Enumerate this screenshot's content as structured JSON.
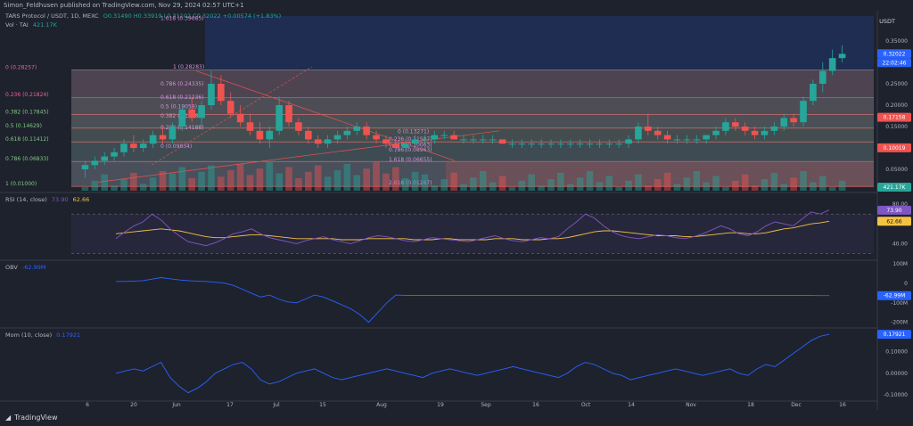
{
  "header": {
    "published": "Simon_Feldhusen published on TradingView.com, Nov 29, 2024 02:57 UTC+1"
  },
  "price_legend": {
    "symbol": "TARS Protocol / USDT, 1D, MEXC",
    "ohlc": "O0.31490 H0.33919 L0.31102 C0.32022 +0.00574 (+1.83%)",
    "vol_label": "Vol · TAI",
    "vol_value": "421.17K"
  },
  "rsi_legend": {
    "label": "RSI (14, close)",
    "v1": "73.90",
    "v2": "62.66"
  },
  "obv_legend": {
    "label": "OBV",
    "v1": "-62.99M"
  },
  "mom_legend": {
    "label": "Mom (10, close)",
    "v1": "0.17921"
  },
  "currency": "USDT",
  "current_price": "0.32022",
  "countdown": "22:02:46",
  "footer": {
    "brand": "TradingView"
  },
  "colors": {
    "up": "#26a69a",
    "down": "#ef5350",
    "rsi": "#7e57c2",
    "rsi_ma": "#f5c242",
    "obv": "#2962ff",
    "mom": "#2962ff",
    "bg": "#1e222d"
  },
  "chart_data": {
    "type": "candlestick",
    "price_axis_ticks": [
      "0.35000",
      "0.30000",
      "0.25000",
      "0.20000",
      "0.15000",
      "0.10000",
      "0.05000"
    ],
    "price_axis_markers": [
      "0.32022",
      "22:02:46",
      "0.17158",
      "0.10019",
      "421.17K"
    ],
    "rsi_axis_ticks": [
      "80.00",
      "73.90",
      "62.66",
      "40.00"
    ],
    "obv_axis_ticks": [
      "100M",
      "0",
      "-62.99M",
      "-100M",
      "-200M"
    ],
    "mom_axis_ticks": [
      "0.17921",
      "0.10000",
      "0.00000",
      "-0.10000"
    ],
    "x_ticks": [
      "6",
      "20",
      "Jun",
      "17",
      "Jul",
      "15",
      "Aug",
      "19",
      "Sep",
      "16",
      "Oct",
      "14",
      "Nov",
      "18",
      "Dec",
      "16"
    ],
    "fib_left": [
      {
        "level": "0",
        "price": "0.28257"
      },
      {
        "level": "0.236",
        "price": "0.21824"
      },
      {
        "level": "0.382",
        "price": "0.17845"
      },
      {
        "level": "0.5",
        "price": "0.14629"
      },
      {
        "level": "0.618",
        "price": "0.11412"
      },
      {
        "level": "0.786",
        "price": "0.06833"
      },
      {
        "level": "1",
        "price": "0.01000"
      }
    ],
    "fib_mid": [
      {
        "level": "1.618",
        "price": "0.39685"
      },
      {
        "level": "1",
        "price": "0.28283"
      },
      {
        "level": "0.786",
        "price": "0.24335"
      },
      {
        "level": "0.618",
        "price": "0.21236"
      },
      {
        "level": "0.5",
        "price": "0.19059"
      },
      {
        "level": "0.382",
        "price": "0.16881"
      },
      {
        "level": "0.236",
        "price": "0.14188"
      },
      {
        "level": "0",
        "price": "0.09834"
      }
    ],
    "fib_right": [
      {
        "level": "0",
        "price": "0.13271"
      },
      {
        "level": "0.236",
        "price": "0.11507"
      },
      {
        "level": "0.618",
        "price": "0.10063"
      },
      {
        "level": "0.786",
        "price": "0.08963"
      },
      {
        "level": "1.618",
        "price": "0.06655"
      },
      {
        "level": "2.618",
        "price": "0.01267"
      }
    ],
    "ylim": [
      0.0,
      0.4
    ],
    "candles": [
      [
        0.05,
        0.07,
        0.03,
        0.06
      ],
      [
        0.06,
        0.08,
        0.05,
        0.07
      ],
      [
        0.07,
        0.09,
        0.06,
        0.08
      ],
      [
        0.08,
        0.1,
        0.07,
        0.09
      ],
      [
        0.09,
        0.12,
        0.08,
        0.11
      ],
      [
        0.11,
        0.13,
        0.09,
        0.1
      ],
      [
        0.1,
        0.12,
        0.09,
        0.11
      ],
      [
        0.11,
        0.14,
        0.1,
        0.13
      ],
      [
        0.13,
        0.15,
        0.11,
        0.12
      ],
      [
        0.12,
        0.16,
        0.11,
        0.15
      ],
      [
        0.15,
        0.2,
        0.14,
        0.19
      ],
      [
        0.19,
        0.22,
        0.16,
        0.17
      ],
      [
        0.17,
        0.21,
        0.15,
        0.2
      ],
      [
        0.2,
        0.28,
        0.19,
        0.25
      ],
      [
        0.25,
        0.27,
        0.2,
        0.21
      ],
      [
        0.21,
        0.23,
        0.17,
        0.18
      ],
      [
        0.18,
        0.2,
        0.15,
        0.16
      ],
      [
        0.16,
        0.18,
        0.13,
        0.14
      ],
      [
        0.14,
        0.16,
        0.11,
        0.12
      ],
      [
        0.12,
        0.15,
        0.1,
        0.14
      ],
      [
        0.14,
        0.22,
        0.13,
        0.2
      ],
      [
        0.2,
        0.21,
        0.15,
        0.16
      ],
      [
        0.16,
        0.17,
        0.13,
        0.14
      ],
      [
        0.14,
        0.15,
        0.11,
        0.12
      ],
      [
        0.12,
        0.13,
        0.1,
        0.11
      ],
      [
        0.11,
        0.13,
        0.1,
        0.12
      ],
      [
        0.12,
        0.14,
        0.11,
        0.13
      ],
      [
        0.13,
        0.15,
        0.12,
        0.14
      ],
      [
        0.14,
        0.16,
        0.13,
        0.15
      ],
      [
        0.15,
        0.16,
        0.12,
        0.13
      ],
      [
        0.13,
        0.14,
        0.11,
        0.12
      ],
      [
        0.12,
        0.13,
        0.1,
        0.11
      ],
      [
        0.11,
        0.12,
        0.09,
        0.1
      ],
      [
        0.1,
        0.12,
        0.09,
        0.11
      ],
      [
        0.11,
        0.13,
        0.1,
        0.12
      ],
      [
        0.12,
        0.13,
        0.11,
        0.12
      ],
      [
        0.12,
        0.14,
        0.11,
        0.13
      ],
      [
        0.13,
        0.14,
        0.12,
        0.13
      ],
      [
        0.13,
        0.14,
        0.12,
        0.12
      ],
      [
        0.12,
        0.13,
        0.11,
        0.12
      ],
      [
        0.12,
        0.13,
        0.11,
        0.12
      ],
      [
        0.12,
        0.13,
        0.11,
        0.12
      ],
      [
        0.12,
        0.13,
        0.11,
        0.12
      ],
      [
        0.12,
        0.12,
        0.11,
        0.11
      ],
      [
        0.11,
        0.12,
        0.1,
        0.11
      ],
      [
        0.11,
        0.12,
        0.1,
        0.11
      ],
      [
        0.11,
        0.12,
        0.1,
        0.11
      ],
      [
        0.11,
        0.12,
        0.1,
        0.11
      ],
      [
        0.11,
        0.12,
        0.1,
        0.11
      ],
      [
        0.11,
        0.12,
        0.1,
        0.11
      ],
      [
        0.11,
        0.12,
        0.1,
        0.11
      ],
      [
        0.11,
        0.12,
        0.1,
        0.11
      ],
      [
        0.11,
        0.12,
        0.1,
        0.11
      ],
      [
        0.11,
        0.12,
        0.1,
        0.11
      ],
      [
        0.11,
        0.12,
        0.1,
        0.11
      ],
      [
        0.11,
        0.12,
        0.1,
        0.11
      ],
      [
        0.11,
        0.13,
        0.1,
        0.12
      ],
      [
        0.12,
        0.16,
        0.11,
        0.15
      ],
      [
        0.15,
        0.18,
        0.13,
        0.14
      ],
      [
        0.14,
        0.15,
        0.12,
        0.13
      ],
      [
        0.13,
        0.14,
        0.11,
        0.12
      ],
      [
        0.12,
        0.13,
        0.11,
        0.12
      ],
      [
        0.12,
        0.13,
        0.11,
        0.12
      ],
      [
        0.12,
        0.13,
        0.11,
        0.12
      ],
      [
        0.12,
        0.13,
        0.11,
        0.13
      ],
      [
        0.13,
        0.15,
        0.12,
        0.14
      ],
      [
        0.14,
        0.17,
        0.13,
        0.16
      ],
      [
        0.16,
        0.17,
        0.14,
        0.15
      ],
      [
        0.15,
        0.16,
        0.13,
        0.14
      ],
      [
        0.14,
        0.15,
        0.12,
        0.13
      ],
      [
        0.13,
        0.15,
        0.12,
        0.14
      ],
      [
        0.14,
        0.16,
        0.13,
        0.15
      ],
      [
        0.15,
        0.18,
        0.14,
        0.17
      ],
      [
        0.17,
        0.18,
        0.15,
        0.16
      ],
      [
        0.16,
        0.22,
        0.15,
        0.21
      ],
      [
        0.21,
        0.26,
        0.2,
        0.25
      ],
      [
        0.25,
        0.3,
        0.23,
        0.28
      ],
      [
        0.28,
        0.33,
        0.27,
        0.31
      ],
      [
        0.31,
        0.34,
        0.3,
        0.32
      ]
    ],
    "series_rsi": [
      45,
      52,
      58,
      62,
      70,
      64,
      55,
      48,
      42,
      40,
      38,
      41,
      45,
      50,
      52,
      55,
      50,
      46,
      44,
      42,
      40,
      43,
      45,
      47,
      44,
      42,
      40,
      43,
      46,
      48,
      47,
      45,
      43,
      42,
      44,
      46,
      45,
      44,
      43,
      42,
      44,
      46,
      48,
      45,
      43,
      42,
      44,
      46,
      45,
      47,
      55,
      62,
      70,
      66,
      58,
      52,
      48,
      46,
      45,
      47,
      49,
      48,
      46,
      45,
      47,
      50,
      54,
      58,
      55,
      50,
      48,
      52,
      58,
      62,
      60,
      58,
      65,
      72,
      70,
      74
    ],
    "series_rsi_ma": [
      50,
      51,
      52,
      53,
      54,
      55,
      54,
      53,
      51,
      49,
      47,
      46,
      46,
      47,
      48,
      49,
      49,
      48,
      47,
      46,
      45,
      45,
      45,
      45,
      45,
      44,
      44,
      44,
      45,
      45,
      45,
      45,
      45,
      44,
      44,
      44,
      45,
      45,
      44,
      44,
      44,
      44,
      45,
      45,
      45,
      44,
      44,
      44,
      45,
      45,
      46,
      48,
      50,
      52,
      53,
      53,
      52,
      51,
      50,
      49,
      48,
      48,
      48,
      47,
      47,
      48,
      49,
      50,
      51,
      51,
      50,
      50,
      51,
      53,
      55,
      56,
      58,
      60,
      61,
      62.66
    ],
    "series_obv": [
      10,
      10,
      12,
      14,
      22,
      30,
      24,
      18,
      14,
      12,
      10,
      6,
      2,
      -10,
      -30,
      -50,
      -70,
      -60,
      -80,
      -95,
      -100,
      -80,
      -60,
      -70,
      -90,
      -110,
      -130,
      -160,
      -200,
      -150,
      -100,
      -60,
      -62,
      -62,
      -62,
      -62,
      -62,
      -62,
      -62,
      -62,
      -62,
      -62,
      -62,
      -62,
      -62,
      -62,
      -62,
      -62,
      -62,
      -62,
      -62,
      -62,
      -62,
      -62,
      -62,
      -62,
      -62,
      -62,
      -62,
      -62,
      -62,
      -62,
      -62,
      -62,
      -62,
      -62,
      -62,
      -62,
      -62,
      -62,
      -62,
      -62,
      -62,
      -62,
      -62,
      -62,
      -62,
      -62,
      -63,
      -63
    ],
    "series_mom": [
      0.0,
      0.01,
      0.02,
      0.01,
      0.03,
      0.05,
      -0.02,
      -0.06,
      -0.09,
      -0.07,
      -0.04,
      0.0,
      0.02,
      0.04,
      0.05,
      0.02,
      -0.03,
      -0.05,
      -0.04,
      -0.02,
      0.0,
      0.01,
      0.02,
      0.0,
      -0.02,
      -0.03,
      -0.02,
      -0.01,
      0.0,
      0.01,
      0.02,
      0.01,
      0.0,
      -0.01,
      -0.02,
      0.0,
      0.01,
      0.02,
      0.01,
      0.0,
      -0.01,
      0.0,
      0.01,
      0.02,
      0.03,
      0.02,
      0.01,
      0.0,
      -0.01,
      -0.02,
      0.0,
      0.03,
      0.05,
      0.04,
      0.02,
      0.0,
      -0.01,
      -0.03,
      -0.02,
      -0.01,
      0.0,
      0.01,
      0.02,
      0.01,
      0.0,
      -0.01,
      0.0,
      0.01,
      0.02,
      0.0,
      -0.01,
      0.02,
      0.04,
      0.03,
      0.06,
      0.09,
      0.12,
      0.15,
      0.17,
      0.17921
    ]
  }
}
